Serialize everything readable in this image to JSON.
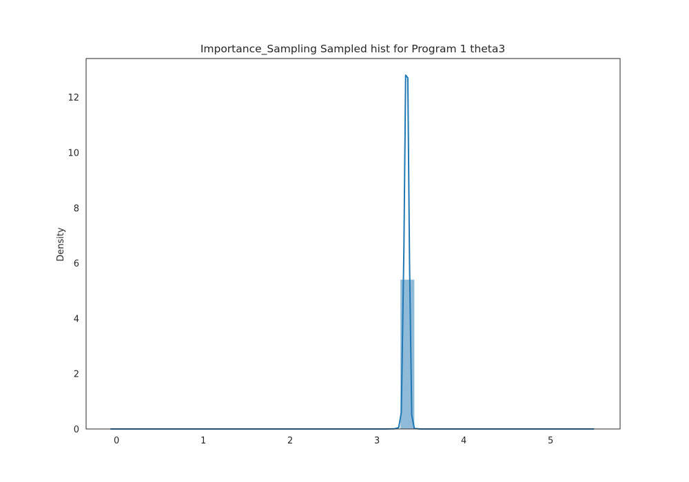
{
  "chart_data": {
    "type": "histogram+kde",
    "title": "Importance_Sampling Sampled hist for Program 1 theta3",
    "xlabel": "",
    "ylabel": "Density",
    "xlim": [
      -0.35,
      5.8
    ],
    "ylim": [
      0,
      13.4
    ],
    "x_ticks": [
      0,
      1,
      2,
      3,
      4,
      5
    ],
    "y_ticks": [
      0,
      2,
      4,
      6,
      8,
      10,
      12
    ],
    "grid": false,
    "legend": "none",
    "colors": {
      "bar_fill": "#1f77b4",
      "bar_fill_opacity": 0.5,
      "kde_line": "#1f77b4",
      "axes_frame": "#262626",
      "text": "#262626"
    },
    "bars": [
      {
        "x_start": 3.27,
        "x_end": 3.43,
        "density": 5.4
      }
    ],
    "kde": {
      "x": [
        -0.07,
        3.1,
        3.2,
        3.25,
        3.28,
        3.31,
        3.33,
        3.355,
        3.375,
        3.4,
        3.43,
        3.5,
        5.5
      ],
      "y": [
        0,
        0,
        0.005,
        0.05,
        0.6,
        6.5,
        12.8,
        12.7,
        6.0,
        0.5,
        0.02,
        0,
        0
      ]
    }
  }
}
